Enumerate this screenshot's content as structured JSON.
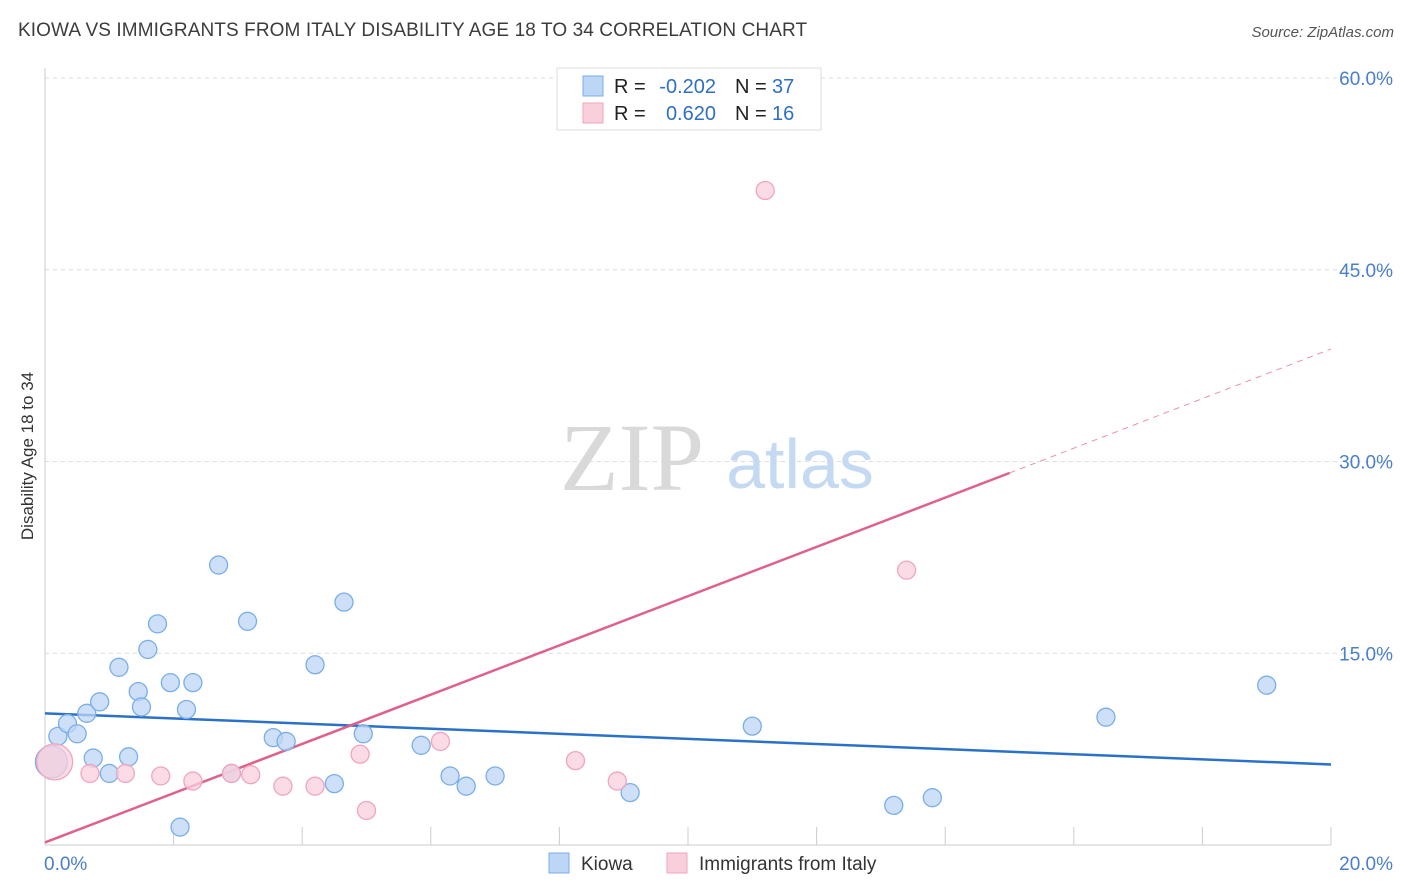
{
  "header": {
    "title": "KIOWA VS IMMIGRANTS FROM ITALY DISABILITY AGE 18 TO 34 CORRELATION CHART",
    "source": "Source: ZipAtlas.com"
  },
  "watermark": {
    "zip": "ZIP",
    "atlas": "atlas"
  },
  "chart_data": {
    "type": "scatter",
    "title": "KIOWA VS IMMIGRANTS FROM ITALY DISABILITY AGE 18 TO 34 CORRELATION CHART",
    "ylabel": "Disability Age 18 to 34",
    "xlabel": "",
    "xlim": [
      0,
      20
    ],
    "ylim": [
      0,
      60
    ],
    "x_tick_labels": [
      "0.0%",
      "20.0%"
    ],
    "y_ticks": [
      15,
      30,
      45,
      60
    ],
    "y_tick_labels": [
      "15.0%",
      "30.0%",
      "45.0%",
      "60.0%"
    ],
    "grid": true,
    "legend_position": "top-center",
    "stats": [
      {
        "r_label": "R =",
        "r_value": "-0.202",
        "n_label": "N =",
        "n_value": "37"
      },
      {
        "r_label": "R =",
        "r_value": "0.620",
        "n_label": "N =",
        "n_value": "16"
      }
    ],
    "series": [
      {
        "name": "Kiowa",
        "color": "#7aaee8",
        "fill": "#bcd6f5",
        "line_color": "#2a72c9",
        "trend": {
          "x": [
            0,
            20
          ],
          "y": [
            10.3,
            6.3
          ]
        },
        "points": [
          [
            0.1,
            6.5,
            16
          ],
          [
            0.2,
            8.5,
            9
          ],
          [
            0.35,
            9.5,
            9
          ],
          [
            0.5,
            8.7,
            9
          ],
          [
            0.65,
            10.3,
            9
          ],
          [
            0.75,
            6.8,
            9
          ],
          [
            0.85,
            11.2,
            9
          ],
          [
            1.0,
            5.6,
            9
          ],
          [
            1.15,
            13.9,
            9
          ],
          [
            1.3,
            6.9,
            9
          ],
          [
            1.45,
            12.0,
            9
          ],
          [
            1.5,
            10.8,
            9
          ],
          [
            1.6,
            15.3,
            9
          ],
          [
            1.75,
            17.3,
            9
          ],
          [
            1.95,
            12.7,
            9
          ],
          [
            2.1,
            1.4,
            9
          ],
          [
            2.2,
            10.6,
            9
          ],
          [
            2.3,
            12.7,
            9
          ],
          [
            2.7,
            21.9,
            9
          ],
          [
            2.9,
            5.6,
            9
          ],
          [
            3.15,
            17.5,
            9
          ],
          [
            3.55,
            8.4,
            9
          ],
          [
            3.75,
            8.1,
            9
          ],
          [
            4.2,
            14.1,
            9
          ],
          [
            4.5,
            4.8,
            9
          ],
          [
            4.65,
            19.0,
            9
          ],
          [
            4.95,
            8.7,
            9
          ],
          [
            5.85,
            7.8,
            9
          ],
          [
            6.3,
            5.4,
            9
          ],
          [
            6.55,
            4.6,
            9
          ],
          [
            7.0,
            5.4,
            9
          ],
          [
            9.1,
            4.1,
            9
          ],
          [
            11.0,
            9.3,
            9
          ],
          [
            13.2,
            3.1,
            9
          ],
          [
            13.8,
            3.7,
            9
          ],
          [
            16.5,
            10.0,
            9
          ],
          [
            19.0,
            12.5,
            9
          ]
        ]
      },
      {
        "name": "Immigrants from Italy",
        "color": "#f0a5bf",
        "fill": "#f9cfdc",
        "line_color": "#e0608c",
        "trend": {
          "x": [
            0,
            15
          ],
          "y": [
            0.2,
            29.1
          ]
        },
        "trend_dashed": {
          "x": [
            15,
            20
          ],
          "y": [
            29.1,
            38.8
          ]
        },
        "points": [
          [
            0.15,
            6.5,
            18
          ],
          [
            0.7,
            5.6,
            9
          ],
          [
            1.25,
            5.6,
            9
          ],
          [
            1.8,
            5.4,
            9
          ],
          [
            2.3,
            5.0,
            9
          ],
          [
            2.9,
            5.6,
            9
          ],
          [
            3.2,
            5.5,
            9
          ],
          [
            3.7,
            4.6,
            9
          ],
          [
            4.2,
            4.6,
            9
          ],
          [
            4.9,
            7.1,
            9
          ],
          [
            5.0,
            2.7,
            9
          ],
          [
            6.15,
            8.1,
            9
          ],
          [
            8.25,
            6.6,
            9
          ],
          [
            8.9,
            5.0,
            9
          ],
          [
            11.2,
            51.2,
            9
          ],
          [
            13.4,
            21.5,
            9
          ]
        ]
      }
    ]
  }
}
